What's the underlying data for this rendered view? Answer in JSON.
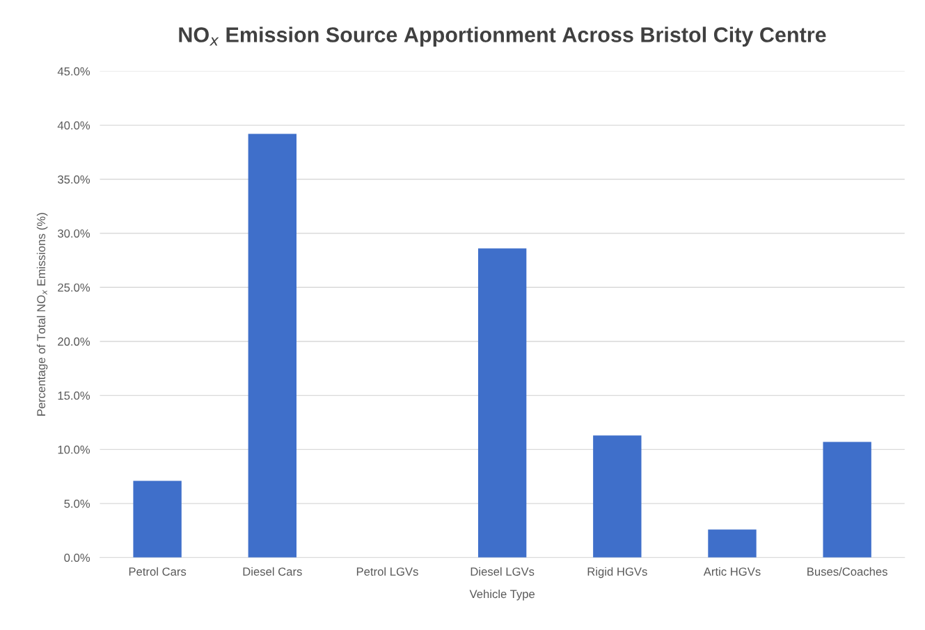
{
  "chart_data": {
    "type": "bar",
    "title": "NO$_{x}$ Emission Source Apportionment Across Bristol City Centre",
    "xlabel": "Vehicle Type",
    "ylabel": "Percentage of Total NO$_{x}$ Emissions (%)",
    "categories": [
      "Petrol Cars",
      "Diesel Cars",
      "Petrol LGVs",
      "Diesel LGVs",
      "Rigid HGVs",
      "Artic HGVs",
      "Buses/Coaches"
    ],
    "values": [
      7.1,
      39.2,
      0,
      28.6,
      11.3,
      2.6,
      10.7
    ],
    "color": "#3f6fca",
    "ylim": [
      0,
      45
    ],
    "yticks": [
      {
        "value": 0,
        "label": "0.0%"
      },
      {
        "value": 5,
        "label": "5.0%"
      },
      {
        "value": 10,
        "label": "10.0%"
      },
      {
        "value": 15,
        "label": "15.0%"
      },
      {
        "value": 20,
        "label": "20.0%"
      },
      {
        "value": 25,
        "label": "25.0%"
      },
      {
        "value": 30,
        "label": "30.0%"
      },
      {
        "value": 35,
        "label": "35.0%"
      },
      {
        "value": 40,
        "label": "40.0%"
      },
      {
        "value": 45,
        "label": "45.0%"
      }
    ],
    "grid": "y",
    "legend": false
  }
}
